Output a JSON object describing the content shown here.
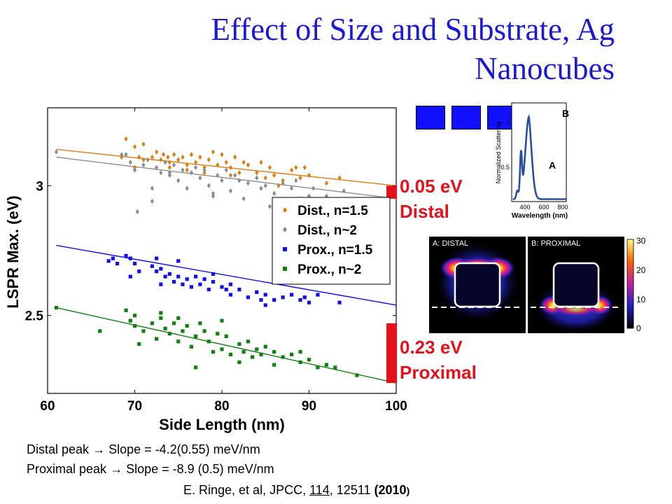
{
  "title": "Effect of Size and Substrate, Ag Nanocubes",
  "chart_data": {
    "type": "scatter",
    "xlabel": "Side Length (nm)",
    "ylabel": "LSPR Max. (eV)",
    "xlim": [
      60,
      100
    ],
    "ylim": [
      2.2,
      3.3
    ],
    "xticks": [
      "60",
      "70",
      "80",
      "90",
      "100"
    ],
    "yticks": [
      {
        "value": 2.5,
        "label": "2.5"
      },
      {
        "value": 3.0,
        "label": "3"
      }
    ],
    "legend_position": "right",
    "series": [
      {
        "name": "Dist., n=1.5",
        "color": "#e07b10",
        "marker": "diamond",
        "fit": [
          [
            61,
            3.14
          ],
          [
            100,
            3.0
          ]
        ],
        "points": [
          [
            68.5,
            3.11
          ],
          [
            69,
            3.18
          ],
          [
            70,
            3.15
          ],
          [
            70.5,
            3.11
          ],
          [
            71,
            3.1
          ],
          [
            72,
            3.11
          ],
          [
            72.5,
            3.13
          ],
          [
            73,
            3.1
          ],
          [
            73.3,
            3.12
          ],
          [
            73.8,
            3.11
          ],
          [
            74,
            3.09
          ],
          [
            74.5,
            3.12
          ],
          [
            75,
            3.1
          ],
          [
            75.5,
            3.11
          ],
          [
            76,
            3.08
          ],
          [
            76.5,
            3.12
          ],
          [
            77,
            3.09
          ],
          [
            77.5,
            3.11
          ],
          [
            78,
            3.07
          ],
          [
            78.5,
            3.1
          ],
          [
            79,
            3.13
          ],
          [
            79.5,
            3.08
          ],
          [
            80,
            3.12
          ],
          [
            80.5,
            3.09
          ],
          [
            81,
            3.07
          ],
          [
            81.5,
            3.11
          ],
          [
            82,
            3.05
          ],
          [
            82.5,
            3.09
          ],
          [
            83,
            3.08
          ],
          [
            84,
            3.05
          ],
          [
            84.5,
            3.09
          ],
          [
            85,
            3.03
          ],
          [
            85.5,
            3.07
          ],
          [
            86,
            3.04
          ],
          [
            87,
            3.02
          ],
          [
            88,
            3.06
          ],
          [
            88.5,
            3.07
          ],
          [
            89,
            3.03
          ],
          [
            90,
            3.04
          ],
          [
            92,
            3.01
          ],
          [
            93.5,
            3.03
          ],
          [
            70,
            3.07
          ],
          [
            74,
            3.07
          ],
          [
            78,
            3.05
          ],
          [
            81,
            3.04
          ],
          [
            86.5,
            3.0
          ],
          [
            89.5,
            3.07
          ],
          [
            76,
            3.06
          ],
          [
            71,
            3.16
          ]
        ]
      },
      {
        "name": "Dist., n~2",
        "color": "#8c8c8c",
        "marker": "diamond",
        "fit": [
          [
            61,
            3.11
          ],
          [
            100,
            2.95
          ]
        ],
        "points": [
          [
            61,
            3.13
          ],
          [
            69,
            3.12
          ],
          [
            69.5,
            3.09
          ],
          [
            70,
            3.06
          ],
          [
            70.3,
            2.9
          ],
          [
            71,
            3.08
          ],
          [
            71.5,
            3.1
          ],
          [
            72,
            2.94
          ],
          [
            72.5,
            3.07
          ],
          [
            73,
            3.05
          ],
          [
            73.5,
            3.09
          ],
          [
            74,
            3.05
          ],
          [
            74.5,
            3.08
          ],
          [
            75,
            3.02
          ],
          [
            75.5,
            3.06
          ],
          [
            76,
            2.99
          ],
          [
            76.5,
            3.05
          ],
          [
            77,
            3.07
          ],
          [
            77.5,
            3.03
          ],
          [
            78,
            3.06
          ],
          [
            78.5,
            3.0
          ],
          [
            79,
            2.96
          ],
          [
            79.5,
            3.04
          ],
          [
            80,
            3.02
          ],
          [
            80.5,
            3.06
          ],
          [
            81,
            2.98
          ],
          [
            81.5,
            3.04
          ],
          [
            82,
            3.02
          ],
          [
            82.5,
            2.95
          ],
          [
            83,
            3.01
          ],
          [
            84,
            3.03
          ],
          [
            84.5,
            2.99
          ],
          [
            85,
            3.0
          ],
          [
            86,
            2.97
          ],
          [
            87,
            3.01
          ],
          [
            88,
            2.99
          ],
          [
            88.5,
            3.02
          ],
          [
            89,
            2.95
          ],
          [
            90,
            2.96
          ],
          [
            90.5,
            2.99
          ],
          [
            91,
            2.94
          ],
          [
            92,
            2.96
          ],
          [
            94,
            2.98
          ],
          [
            95,
            2.94
          ],
          [
            68.5,
            3.12
          ],
          [
            72,
            2.99
          ],
          [
            85.5,
            2.92
          ],
          [
            79,
            2.97
          ],
          [
            74,
            3.04
          ]
        ]
      },
      {
        "name": "Prox., n=1.5",
        "color": "#1010ee",
        "marker": "square",
        "fit": [
          [
            61,
            2.77
          ],
          [
            100,
            2.54
          ]
        ],
        "points": [
          [
            67,
            2.71
          ],
          [
            67.5,
            2.72
          ],
          [
            68,
            2.7
          ],
          [
            69,
            2.73
          ],
          [
            69.5,
            2.72
          ],
          [
            70,
            2.7
          ],
          [
            70.5,
            2.67
          ],
          [
            72,
            2.69
          ],
          [
            72.5,
            2.67
          ],
          [
            73,
            2.68
          ],
          [
            73.5,
            2.65
          ],
          [
            74,
            2.66
          ],
          [
            74.5,
            2.63
          ],
          [
            75,
            2.65
          ],
          [
            75.5,
            2.62
          ],
          [
            76,
            2.64
          ],
          [
            76.5,
            2.61
          ],
          [
            77,
            2.65
          ],
          [
            77.5,
            2.62
          ],
          [
            78,
            2.64
          ],
          [
            78.5,
            2.6
          ],
          [
            79,
            2.63
          ],
          [
            80,
            2.61
          ],
          [
            80.5,
            2.6
          ],
          [
            81,
            2.58
          ],
          [
            82,
            2.6
          ],
          [
            83,
            2.57
          ],
          [
            84,
            2.59
          ],
          [
            84.5,
            2.56
          ],
          [
            85,
            2.58
          ],
          [
            86,
            2.56
          ],
          [
            87,
            2.57
          ],
          [
            88,
            2.58
          ],
          [
            89,
            2.56
          ],
          [
            89.5,
            2.57
          ],
          [
            90,
            2.55
          ],
          [
            91,
            2.58
          ],
          [
            93.5,
            2.55
          ],
          [
            85,
            2.54
          ],
          [
            73,
            2.62
          ],
          [
            69.5,
            2.65
          ],
          [
            75,
            2.71
          ],
          [
            79,
            2.66
          ],
          [
            72.5,
            2.72
          ],
          [
            81,
            2.62
          ]
        ]
      },
      {
        "name": "Prox., n~2",
        "color": "#108010",
        "marker": "square",
        "fit": [
          [
            61,
            2.53
          ],
          [
            100,
            2.24
          ]
        ],
        "points": [
          [
            61,
            2.53
          ],
          [
            66,
            2.44
          ],
          [
            69,
            2.52
          ],
          [
            69.5,
            2.48
          ],
          [
            70,
            2.5
          ],
          [
            70.5,
            2.39
          ],
          [
            71,
            2.44
          ],
          [
            72,
            2.47
          ],
          [
            72.5,
            2.41
          ],
          [
            73,
            2.49
          ],
          [
            73.5,
            2.45
          ],
          [
            74,
            2.43
          ],
          [
            74.5,
            2.47
          ],
          [
            75,
            2.4
          ],
          [
            75.5,
            2.44
          ],
          [
            76,
            2.46
          ],
          [
            76.5,
            2.38
          ],
          [
            77,
            2.42
          ],
          [
            77.5,
            2.47
          ],
          [
            78,
            2.44
          ],
          [
            78.5,
            2.4
          ],
          [
            79,
            2.36
          ],
          [
            79.5,
            2.43
          ],
          [
            80,
            2.37
          ],
          [
            80.5,
            2.42
          ],
          [
            81,
            2.35
          ],
          [
            82,
            2.39
          ],
          [
            82.5,
            2.36
          ],
          [
            83,
            2.4
          ],
          [
            83.5,
            2.34
          ],
          [
            84,
            2.37
          ],
          [
            84.5,
            2.35
          ],
          [
            85,
            2.38
          ],
          [
            86,
            2.36
          ],
          [
            87,
            2.34
          ],
          [
            88,
            2.35
          ],
          [
            89,
            2.32
          ],
          [
            90,
            2.33
          ],
          [
            91,
            2.3
          ],
          [
            92,
            2.31
          ],
          [
            93,
            2.3
          ],
          [
            95.5,
            2.27
          ],
          [
            77,
            2.3
          ],
          [
            73,
            2.51
          ],
          [
            70,
            2.46
          ],
          [
            86,
            2.31
          ],
          [
            80,
            2.48
          ],
          [
            89,
            2.36
          ],
          [
            75,
            2.49
          ],
          [
            82,
            2.32
          ]
        ]
      }
    ]
  },
  "bars": [
    {
      "color": "#e8101a",
      "from": 3.0,
      "to": 2.95,
      "label_line1": "0.05 eV",
      "label_line2": "Distal"
    },
    {
      "color": "#e8101a",
      "from": 2.47,
      "to": 2.24,
      "label_line1": "0.23 eV",
      "label_line2": "Proximal"
    }
  ],
  "spectrum": {
    "xlabel": "Wavelength (nm)",
    "ylabel": "Normalized Scattering",
    "xticks": [
      "400",
      "600",
      "800"
    ],
    "yticks": [
      "0.5",
      "1"
    ],
    "peak_a_label": "A",
    "peak_b_label": "B",
    "line_color": "#2a4fa0"
  },
  "field_map": {
    "panel_a_label": "A: DISTAL",
    "panel_b_label": "B: PROXIMAL",
    "colorbar_ticks": [
      "30",
      "20",
      "10",
      "0"
    ]
  },
  "notes": {
    "line1_prefix": "Distal peak",
    "line1_rest": "Slope = -4.2(0.55) meV/nm",
    "line2_prefix": "Proximal peak",
    "line2_rest": "Slope = -8.9 (0.5) meV/nm",
    "arrow": "→"
  },
  "citation": {
    "part1": "E. Ringe, et al, JPCC, ",
    "volume": "114",
    "part2": ", 12511 ",
    "year": "(2010",
    "close": ")"
  }
}
